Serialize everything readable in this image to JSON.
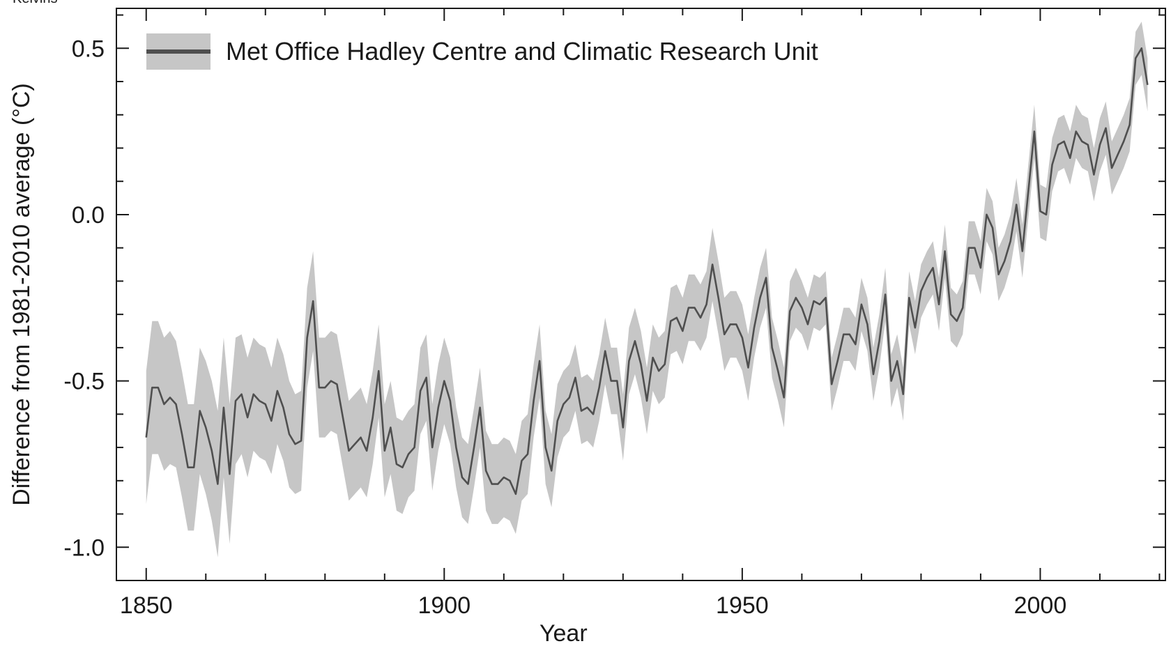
{
  "corner_label": "Kelvins",
  "chart_data": {
    "type": "line",
    "title": "",
    "xlabel": "Year",
    "ylabel": "Difference from 1981-2010 average (°C)",
    "xlim": [
      1845,
      2021
    ],
    "ylim": [
      -1.1,
      0.62
    ],
    "xticks": [
      1850,
      1900,
      1950,
      2000
    ],
    "yticks": [
      0.5,
      0.0,
      -0.5,
      -1.0
    ],
    "ytick_labels": [
      "0.5",
      "0.0",
      "-0.5",
      "-1.0"
    ],
    "grid": false,
    "legend_position": "top-left",
    "colors": {
      "line": "#4f4f4f",
      "band": "#c6c6c6",
      "axes": "#1a1a1a"
    },
    "series": [
      {
        "name": "Met Office Hadley Centre and Climatic Research Unit",
        "x_start": 1850,
        "x_step": 1,
        "values": [
          -0.67,
          -0.52,
          -0.52,
          -0.57,
          -0.55,
          -0.57,
          -0.66,
          -0.76,
          -0.76,
          -0.59,
          -0.64,
          -0.71,
          -0.81,
          -0.58,
          -0.78,
          -0.56,
          -0.54,
          -0.61,
          -0.54,
          -0.56,
          -0.57,
          -0.62,
          -0.53,
          -0.58,
          -0.66,
          -0.69,
          -0.68,
          -0.37,
          -0.26,
          -0.52,
          -0.52,
          -0.5,
          -0.51,
          -0.61,
          -0.71,
          -0.69,
          -0.67,
          -0.71,
          -0.61,
          -0.47,
          -0.71,
          -0.64,
          -0.75,
          -0.76,
          -0.72,
          -0.7,
          -0.53,
          -0.49,
          -0.7,
          -0.58,
          -0.5,
          -0.56,
          -0.7,
          -0.79,
          -0.81,
          -0.7,
          -0.58,
          -0.77,
          -0.81,
          -0.81,
          -0.79,
          -0.8,
          -0.84,
          -0.74,
          -0.72,
          -0.56,
          -0.44,
          -0.7,
          -0.77,
          -0.62,
          -0.57,
          -0.55,
          -0.49,
          -0.59,
          -0.58,
          -0.6,
          -0.52,
          -0.41,
          -0.5,
          -0.5,
          -0.64,
          -0.44,
          -0.38,
          -0.45,
          -0.56,
          -0.43,
          -0.47,
          -0.45,
          -0.32,
          -0.31,
          -0.35,
          -0.28,
          -0.28,
          -0.31,
          -0.27,
          -0.15,
          -0.25,
          -0.36,
          -0.33,
          -0.33,
          -0.37,
          -0.46,
          -0.34,
          -0.25,
          -0.19,
          -0.4,
          -0.47,
          -0.55,
          -0.29,
          -0.25,
          -0.28,
          -0.33,
          -0.26,
          -0.27,
          -0.25,
          -0.51,
          -0.44,
          -0.36,
          -0.36,
          -0.39,
          -0.27,
          -0.33,
          -0.48,
          -0.38,
          -0.24,
          -0.5,
          -0.44,
          -0.54,
          -0.25,
          -0.34,
          -0.23,
          -0.19,
          -0.16,
          -0.27,
          -0.11,
          -0.3,
          -0.32,
          -0.28,
          -0.1,
          -0.1,
          -0.16,
          0.0,
          -0.04,
          -0.18,
          -0.14,
          -0.08,
          0.03,
          -0.11,
          0.07,
          0.25,
          0.01,
          0.0,
          0.15,
          0.21,
          0.22,
          0.17,
          0.25,
          0.22,
          0.21,
          0.12,
          0.21,
          0.26,
          0.14,
          0.18,
          0.22,
          0.27,
          0.47,
          0.5,
          0.39
        ],
        "uncertainty": [
          0.2,
          0.2,
          0.2,
          0.2,
          0.2,
          0.19,
          0.19,
          0.19,
          0.19,
          0.19,
          0.2,
          0.21,
          0.22,
          0.21,
          0.21,
          0.19,
          0.18,
          0.18,
          0.17,
          0.17,
          0.17,
          0.16,
          0.16,
          0.16,
          0.16,
          0.15,
          0.15,
          0.15,
          0.15,
          0.15,
          0.15,
          0.15,
          0.15,
          0.15,
          0.15,
          0.15,
          0.15,
          0.14,
          0.14,
          0.14,
          0.14,
          0.14,
          0.14,
          0.14,
          0.13,
          0.13,
          0.13,
          0.13,
          0.13,
          0.13,
          0.13,
          0.13,
          0.12,
          0.12,
          0.12,
          0.12,
          0.12,
          0.12,
          0.12,
          0.12,
          0.12,
          0.12,
          0.12,
          0.12,
          0.12,
          0.11,
          0.11,
          0.11,
          0.11,
          0.11,
          0.1,
          0.1,
          0.1,
          0.1,
          0.1,
          0.1,
          0.1,
          0.1,
          0.1,
          0.1,
          0.1,
          0.1,
          0.1,
          0.1,
          0.1,
          0.1,
          0.1,
          0.1,
          0.1,
          0.1,
          0.1,
          0.1,
          0.1,
          0.1,
          0.1,
          0.11,
          0.11,
          0.11,
          0.1,
          0.1,
          0.1,
          0.1,
          0.09,
          0.09,
          0.09,
          0.09,
          0.09,
          0.09,
          0.09,
          0.09,
          0.08,
          0.08,
          0.08,
          0.08,
          0.08,
          0.08,
          0.08,
          0.08,
          0.08,
          0.08,
          0.08,
          0.08,
          0.08,
          0.08,
          0.08,
          0.08,
          0.08,
          0.08,
          0.08,
          0.08,
          0.08,
          0.08,
          0.08,
          0.08,
          0.08,
          0.08,
          0.08,
          0.08,
          0.08,
          0.08,
          0.08,
          0.08,
          0.08,
          0.08,
          0.08,
          0.08,
          0.08,
          0.08,
          0.08,
          0.08,
          0.08,
          0.08,
          0.08,
          0.08,
          0.08,
          0.08,
          0.08,
          0.08,
          0.08,
          0.08,
          0.08,
          0.08,
          0.08,
          0.08,
          0.08,
          0.08,
          0.08,
          0.08,
          0.08
        ]
      }
    ]
  }
}
